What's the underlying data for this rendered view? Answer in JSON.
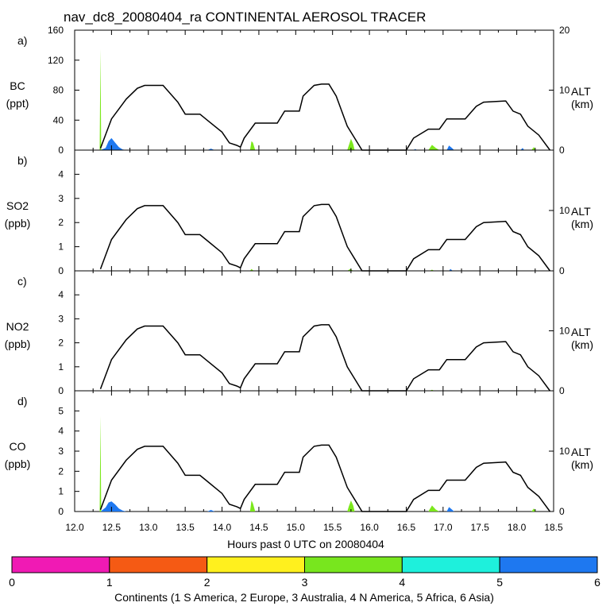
{
  "title": "nav_dc8_20080404_ra CONTINENTAL AEROSOL TRACER",
  "xlabel": "Hours past 0 UTC on 20080404",
  "chart_data": [
    {
      "type": "area",
      "panel": "a)",
      "species": "BC",
      "unit": "(ppt)",
      "ylim": [
        0,
        160
      ],
      "yticks": [
        "0",
        "40",
        "80",
        "120",
        "160"
      ],
      "xlim": [
        12.0,
        18.5
      ],
      "xticks": [
        "12.0",
        "12.5",
        "13.0",
        "13.5",
        "14.0",
        "14.5",
        "15.0",
        "15.5",
        "16.0",
        "16.5",
        "17.0",
        "17.5",
        "18.0",
        "18.5"
      ],
      "right_axis": {
        "label": "ALT",
        "unit": "(km)",
        "ylim": [
          0,
          20
        ],
        "yticks": [
          "0",
          "10",
          "20"
        ]
      },
      "series": [
        {
          "name": "Asia",
          "color": "#1e78f0",
          "points": [
            [
              12.35,
              0
            ],
            [
              12.42,
              3
            ],
            [
              12.46,
              12
            ],
            [
              12.5,
              16
            ],
            [
              12.55,
              10
            ],
            [
              12.6,
              4
            ],
            [
              12.65,
              1
            ],
            [
              12.7,
              0
            ],
            [
              13.8,
              0
            ],
            [
              13.85,
              2
            ],
            [
              13.9,
              0
            ],
            [
              16.6,
              0
            ],
            [
              16.62,
              1.5
            ],
            [
              16.65,
              0
            ],
            [
              17.05,
              0
            ],
            [
              17.08,
              6
            ],
            [
              17.12,
              3
            ],
            [
              17.15,
              0
            ],
            [
              18.05,
              0
            ],
            [
              18.08,
              3
            ],
            [
              18.1,
              0
            ]
          ]
        },
        {
          "name": "N America",
          "color": "#7ce81c",
          "points": [
            [
              12.34,
              0
            ],
            [
              12.35,
              135
            ],
            [
              12.36,
              0
            ],
            [
              14.38,
              0
            ],
            [
              14.4,
              12
            ],
            [
              14.42,
              10
            ],
            [
              14.45,
              0
            ],
            [
              15.7,
              0
            ],
            [
              15.72,
              6
            ],
            [
              15.75,
              15
            ],
            [
              15.78,
              8
            ],
            [
              15.8,
              0
            ],
            [
              16.8,
              0
            ],
            [
              16.85,
              7
            ],
            [
              16.9,
              3
            ],
            [
              16.95,
              0
            ],
            [
              18.2,
              0
            ],
            [
              18.23,
              4
            ],
            [
              18.26,
              0
            ]
          ]
        }
      ],
      "altitude_km": [
        [
          12.35,
          0.3
        ],
        [
          12.5,
          5.2
        ],
        [
          12.7,
          8.5
        ],
        [
          12.85,
          10.3
        ],
        [
          12.95,
          10.8
        ],
        [
          13.2,
          10.8
        ],
        [
          13.4,
          8
        ],
        [
          13.5,
          6
        ],
        [
          13.7,
          6
        ],
        [
          13.8,
          5
        ],
        [
          14.0,
          3
        ],
        [
          14.1,
          1.2
        ],
        [
          14.2,
          0.8
        ],
        [
          14.25,
          0.5
        ],
        [
          14.3,
          2
        ],
        [
          14.45,
          4.5
        ],
        [
          14.75,
          4.5
        ],
        [
          14.85,
          6.5
        ],
        [
          15.05,
          6.5
        ],
        [
          15.1,
          9
        ],
        [
          15.25,
          10.8
        ],
        [
          15.35,
          11
        ],
        [
          15.45,
          11
        ],
        [
          15.55,
          9
        ],
        [
          15.7,
          4
        ],
        [
          15.8,
          2
        ],
        [
          15.9,
          0
        ],
        [
          16.5,
          0
        ],
        [
          16.6,
          2
        ],
        [
          16.8,
          3.5
        ],
        [
          16.95,
          3.5
        ],
        [
          17.05,
          5.2
        ],
        [
          17.3,
          5.2
        ],
        [
          17.45,
          7.3
        ],
        [
          17.55,
          8
        ],
        [
          17.85,
          8.2
        ],
        [
          17.95,
          6.5
        ],
        [
          18.05,
          6
        ],
        [
          18.15,
          4
        ],
        [
          18.3,
          2.5
        ],
        [
          18.45,
          0
        ]
      ]
    },
    {
      "type": "area",
      "panel": "b)",
      "species": "SO2",
      "unit": "(ppb)",
      "ylim": [
        0,
        5
      ],
      "yticks": [
        "0",
        "1",
        "2",
        "3",
        "4"
      ],
      "xlim": [
        12.0,
        18.5
      ],
      "right_axis": {
        "label": "ALT",
        "unit": "(km)",
        "ylim": [
          0,
          20
        ],
        "yticks": [
          "0",
          "10"
        ]
      },
      "series": [
        {
          "name": "N America",
          "color": "#7ce81c",
          "points": [
            [
              14.38,
              0
            ],
            [
              14.4,
              0.08
            ],
            [
              14.43,
              0
            ],
            [
              15.7,
              0
            ],
            [
              15.74,
              0.08
            ],
            [
              15.78,
              0
            ],
            [
              16.82,
              0
            ],
            [
              16.85,
              0.05
            ],
            [
              16.88,
              0
            ]
          ]
        },
        {
          "name": "Asia",
          "color": "#1e78f0",
          "points": [
            [
              17.08,
              0
            ],
            [
              17.1,
              0.08
            ],
            [
              17.13,
              0
            ]
          ]
        }
      ],
      "altitude_km": [
        [
          12.35,
          0.3
        ],
        [
          12.5,
          5.2
        ],
        [
          12.7,
          8.5
        ],
        [
          12.85,
          10.3
        ],
        [
          12.95,
          10.8
        ],
        [
          13.2,
          10.8
        ],
        [
          13.4,
          8
        ],
        [
          13.5,
          6
        ],
        [
          13.7,
          6
        ],
        [
          13.8,
          5
        ],
        [
          14.0,
          3
        ],
        [
          14.1,
          1.2
        ],
        [
          14.2,
          0.8
        ],
        [
          14.25,
          0.5
        ],
        [
          14.3,
          2
        ],
        [
          14.45,
          4.5
        ],
        [
          14.75,
          4.5
        ],
        [
          14.85,
          6.5
        ],
        [
          15.05,
          6.5
        ],
        [
          15.1,
          9
        ],
        [
          15.25,
          10.8
        ],
        [
          15.35,
          11
        ],
        [
          15.45,
          11
        ],
        [
          15.55,
          9
        ],
        [
          15.7,
          4
        ],
        [
          15.8,
          2
        ],
        [
          15.9,
          0
        ],
        [
          16.5,
          0
        ],
        [
          16.6,
          2
        ],
        [
          16.8,
          3.5
        ],
        [
          16.95,
          3.5
        ],
        [
          17.05,
          5.2
        ],
        [
          17.3,
          5.2
        ],
        [
          17.45,
          7.3
        ],
        [
          17.55,
          8
        ],
        [
          17.85,
          8.2
        ],
        [
          17.95,
          6.5
        ],
        [
          18.05,
          6
        ],
        [
          18.15,
          4
        ],
        [
          18.3,
          2.5
        ],
        [
          18.45,
          0
        ]
      ]
    },
    {
      "type": "area",
      "panel": "c)",
      "species": "NO2",
      "unit": "(ppb)",
      "ylim": [
        0,
        5
      ],
      "yticks": [
        "0",
        "1",
        "2",
        "3",
        "4"
      ],
      "xlim": [
        12.0,
        18.5
      ],
      "right_axis": {
        "label": "ALT",
        "unit": "(km)",
        "ylim": [
          0,
          20
        ],
        "yticks": [
          "0",
          "10"
        ]
      },
      "series": [
        {
          "name": "N America",
          "color": "#7ce81c",
          "points": [
            [
              15.72,
              0
            ],
            [
              15.74,
              0.05
            ],
            [
              15.76,
              0
            ],
            [
              16.82,
              0
            ],
            [
              16.85,
              0.04
            ],
            [
              16.88,
              0
            ]
          ]
        }
      ],
      "altitude_km": [
        [
          12.35,
          0.3
        ],
        [
          12.5,
          5.2
        ],
        [
          12.7,
          8.5
        ],
        [
          12.85,
          10.3
        ],
        [
          12.95,
          10.8
        ],
        [
          13.2,
          10.8
        ],
        [
          13.4,
          8
        ],
        [
          13.5,
          6
        ],
        [
          13.7,
          6
        ],
        [
          13.8,
          5
        ],
        [
          14.0,
          3
        ],
        [
          14.1,
          1.2
        ],
        [
          14.2,
          0.8
        ],
        [
          14.25,
          0.5
        ],
        [
          14.3,
          2
        ],
        [
          14.45,
          4.5
        ],
        [
          14.75,
          4.5
        ],
        [
          14.85,
          6.5
        ],
        [
          15.05,
          6.5
        ],
        [
          15.1,
          9
        ],
        [
          15.25,
          10.8
        ],
        [
          15.35,
          11
        ],
        [
          15.45,
          11
        ],
        [
          15.55,
          9
        ],
        [
          15.7,
          4
        ],
        [
          15.8,
          2
        ],
        [
          15.9,
          0
        ],
        [
          16.5,
          0
        ],
        [
          16.6,
          2
        ],
        [
          16.8,
          3.5
        ],
        [
          16.95,
          3.5
        ],
        [
          17.05,
          5.2
        ],
        [
          17.3,
          5.2
        ],
        [
          17.45,
          7.3
        ],
        [
          17.55,
          8
        ],
        [
          17.85,
          8.2
        ],
        [
          17.95,
          6.5
        ],
        [
          18.05,
          6
        ],
        [
          18.15,
          4
        ],
        [
          18.3,
          2.5
        ],
        [
          18.45,
          0
        ]
      ]
    },
    {
      "type": "area",
      "panel": "d)",
      "species": "CO",
      "unit": "(ppb)",
      "ylim": [
        0,
        6
      ],
      "yticks": [
        "0",
        "1",
        "2",
        "3",
        "4",
        "5"
      ],
      "xlim": [
        12.0,
        18.5
      ],
      "right_axis": {
        "label": "ALT",
        "unit": "(km)",
        "ylim": [
          0,
          20
        ],
        "yticks": [
          "0",
          "10"
        ]
      },
      "series": [
        {
          "name": "Asia",
          "color": "#1e78f0",
          "points": [
            [
              12.35,
              0
            ],
            [
              12.42,
              0.2
            ],
            [
              12.46,
              0.45
            ],
            [
              12.5,
              0.5
            ],
            [
              12.55,
              0.35
            ],
            [
              12.6,
              0.15
            ],
            [
              12.65,
              0.05
            ],
            [
              12.7,
              0
            ],
            [
              13.8,
              0
            ],
            [
              13.85,
              0.08
            ],
            [
              13.9,
              0
            ],
            [
              17.05,
              0
            ],
            [
              17.08,
              0.22
            ],
            [
              17.12,
              0.1
            ],
            [
              17.15,
              0
            ]
          ]
        },
        {
          "name": "N America",
          "color": "#7ce81c",
          "points": [
            [
              12.34,
              0
            ],
            [
              12.35,
              4.75
            ],
            [
              12.36,
              0
            ],
            [
              14.38,
              0
            ],
            [
              14.4,
              0.55
            ],
            [
              14.42,
              0.4
            ],
            [
              14.45,
              0
            ],
            [
              15.7,
              0
            ],
            [
              15.72,
              0.25
            ],
            [
              15.75,
              0.55
            ],
            [
              15.78,
              0.3
            ],
            [
              15.8,
              0
            ],
            [
              16.8,
              0
            ],
            [
              16.85,
              0.3
            ],
            [
              16.9,
              0.1
            ],
            [
              16.95,
              0
            ],
            [
              18.2,
              0
            ],
            [
              18.23,
              0.15
            ],
            [
              18.26,
              0
            ]
          ]
        }
      ],
      "altitude_km": [
        [
          12.35,
          0.3
        ],
        [
          12.5,
          5.2
        ],
        [
          12.7,
          8.5
        ],
        [
          12.85,
          10.3
        ],
        [
          12.95,
          10.8
        ],
        [
          13.2,
          10.8
        ],
        [
          13.4,
          8
        ],
        [
          13.5,
          6
        ],
        [
          13.7,
          6
        ],
        [
          13.8,
          5
        ],
        [
          14.0,
          3
        ],
        [
          14.1,
          1.2
        ],
        [
          14.2,
          0.8
        ],
        [
          14.25,
          0.5
        ],
        [
          14.3,
          2
        ],
        [
          14.45,
          4.5
        ],
        [
          14.75,
          4.5
        ],
        [
          14.85,
          6.5
        ],
        [
          15.05,
          6.5
        ],
        [
          15.1,
          9
        ],
        [
          15.25,
          10.8
        ],
        [
          15.35,
          11
        ],
        [
          15.45,
          11
        ],
        [
          15.55,
          9
        ],
        [
          15.7,
          4
        ],
        [
          15.8,
          2
        ],
        [
          15.9,
          0
        ],
        [
          16.5,
          0
        ],
        [
          16.6,
          2
        ],
        [
          16.8,
          3.5
        ],
        [
          16.95,
          3.5
        ],
        [
          17.05,
          5.2
        ],
        [
          17.3,
          5.2
        ],
        [
          17.45,
          7.3
        ],
        [
          17.55,
          8
        ],
        [
          17.85,
          8.2
        ],
        [
          17.95,
          6.5
        ],
        [
          18.05,
          6
        ],
        [
          18.15,
          4
        ],
        [
          18.3,
          2.5
        ],
        [
          18.45,
          0
        ]
      ]
    }
  ],
  "colorbar": {
    "colors": [
      "#f01ab4",
      "#f55a14",
      "#fff01e",
      "#78e61e",
      "#1ef0dc",
      "#1e78f0"
    ],
    "ticks": [
      "0",
      "1",
      "2",
      "3",
      "4",
      "5",
      "6"
    ],
    "label": "Continents (1 S America, 2 Europe, 3 Australia, 4 N America, 5 Africa, 6 Asia)"
  }
}
